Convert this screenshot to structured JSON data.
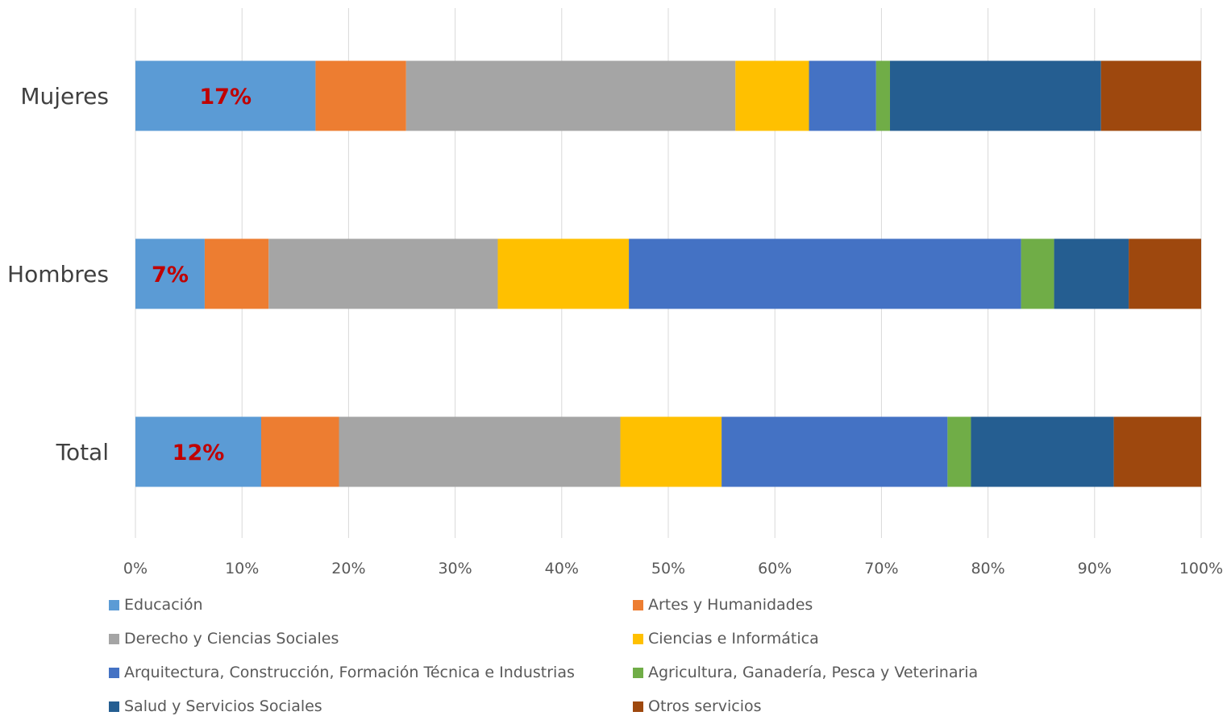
{
  "chart_data": {
    "type": "bar",
    "orientation": "horizontal",
    "stacked": "percent",
    "categories": [
      "Mujeres",
      "Hombres",
      "Total"
    ],
    "series": [
      {
        "name": "Educación",
        "color": "#5B9BD5",
        "values": [
          16.9,
          6.5,
          11.8
        ]
      },
      {
        "name": "Artes y Humanidades",
        "color": "#ED7D31",
        "values": [
          8.5,
          6.0,
          7.3
        ]
      },
      {
        "name": "Derecho y Ciencias Sociales",
        "color": "#A5A5A5",
        "values": [
          30.9,
          21.5,
          26.4
        ]
      },
      {
        "name": "Ciencias e Informática",
        "color": "#FFC000",
        "values": [
          6.9,
          12.3,
          9.5
        ]
      },
      {
        "name": "Arquitectura, Construcción, Formación Técnica e Industrias",
        "color": "#4472C4",
        "values": [
          6.3,
          36.8,
          21.2
        ]
      },
      {
        "name": "Agricultura, Ganadería, Pesca y Veterinaria",
        "color": "#70AD47",
        "values": [
          1.3,
          3.1,
          2.2
        ]
      },
      {
        "name": "Salud y Servicios Sociales",
        "color": "#255E91",
        "values": [
          19.8,
          7.0,
          13.4
        ]
      },
      {
        "name": "Otros servicios",
        "color": "#9E480E",
        "values": [
          9.4,
          6.8,
          8.2
        ]
      }
    ],
    "data_labels": [
      "17%",
      "7%",
      "12%"
    ],
    "data_label_color": "#C00000",
    "x_ticks": [
      "0%",
      "10%",
      "20%",
      "30%",
      "40%",
      "50%",
      "60%",
      "70%",
      "80%",
      "90%",
      "100%"
    ],
    "xlim": [
      0,
      100
    ],
    "grid": true,
    "legend_position": "bottom"
  }
}
